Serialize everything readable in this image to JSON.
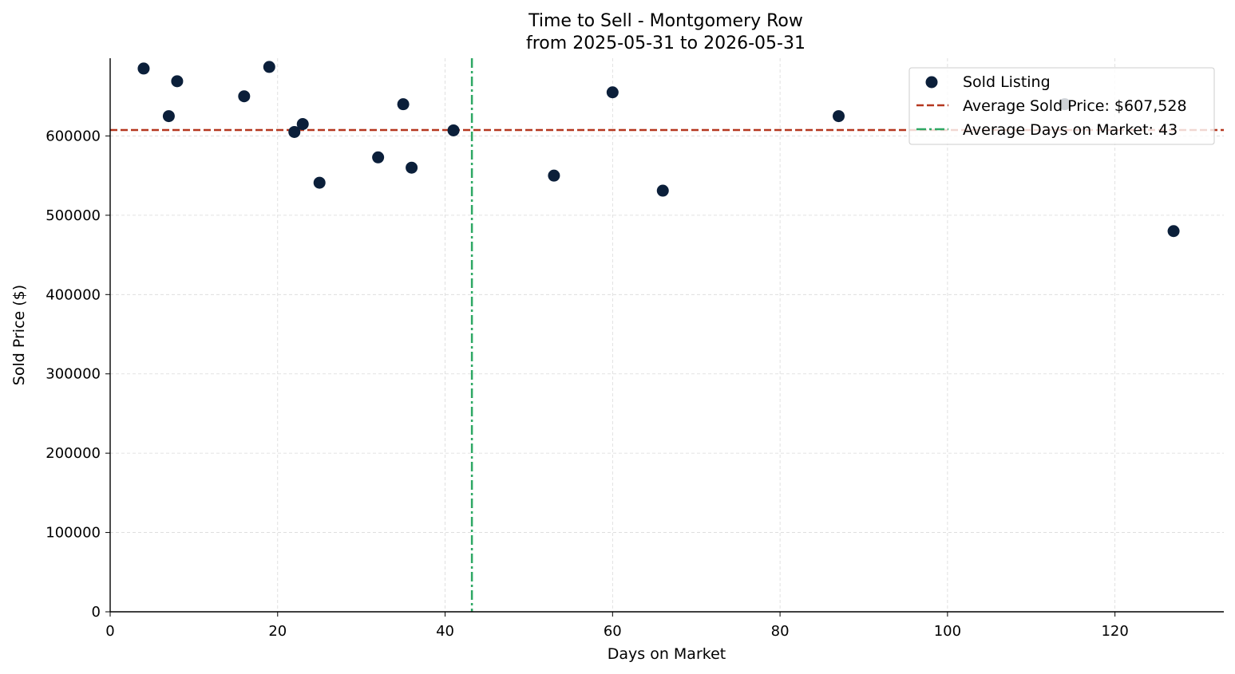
{
  "chart_data": {
    "type": "scatter",
    "title": "Time to Sell - Montgomery Row",
    "subtitle": "from 2025-05-31 to 2026-05-31",
    "xlabel": "Days on Market",
    "ylabel": "Sold Price ($)",
    "xlim": [
      0,
      133
    ],
    "ylim": [
      0,
      698000
    ],
    "xticks": [
      0,
      20,
      40,
      60,
      80,
      100,
      120
    ],
    "yticks": [
      0,
      100000,
      200000,
      300000,
      400000,
      500000,
      600000
    ],
    "grid": true,
    "legend_position": "top-right",
    "series": [
      {
        "name": "Sold Listing",
        "color": "#0b1f3a",
        "x": [
          4,
          7,
          8,
          16,
          19,
          22,
          23,
          25,
          32,
          35,
          36,
          41,
          53,
          60,
          66,
          87,
          114,
          127
        ],
        "y": [
          685000,
          625000,
          669000,
          650000,
          687000,
          605000,
          615000,
          541000,
          573000,
          640000,
          560000,
          607000,
          550000,
          655000,
          531000,
          625000,
          640000,
          480000
        ]
      }
    ],
    "reference_lines": [
      {
        "label": "Average Sold Price: $607,528",
        "orientation": "horizontal",
        "value": 607528,
        "color": "#b5371f",
        "style": "dashed"
      },
      {
        "label": "Average Days on Market: 43",
        "orientation": "vertical",
        "value": 43.2,
        "color": "#2ea864",
        "style": "dashdot"
      }
    ]
  }
}
